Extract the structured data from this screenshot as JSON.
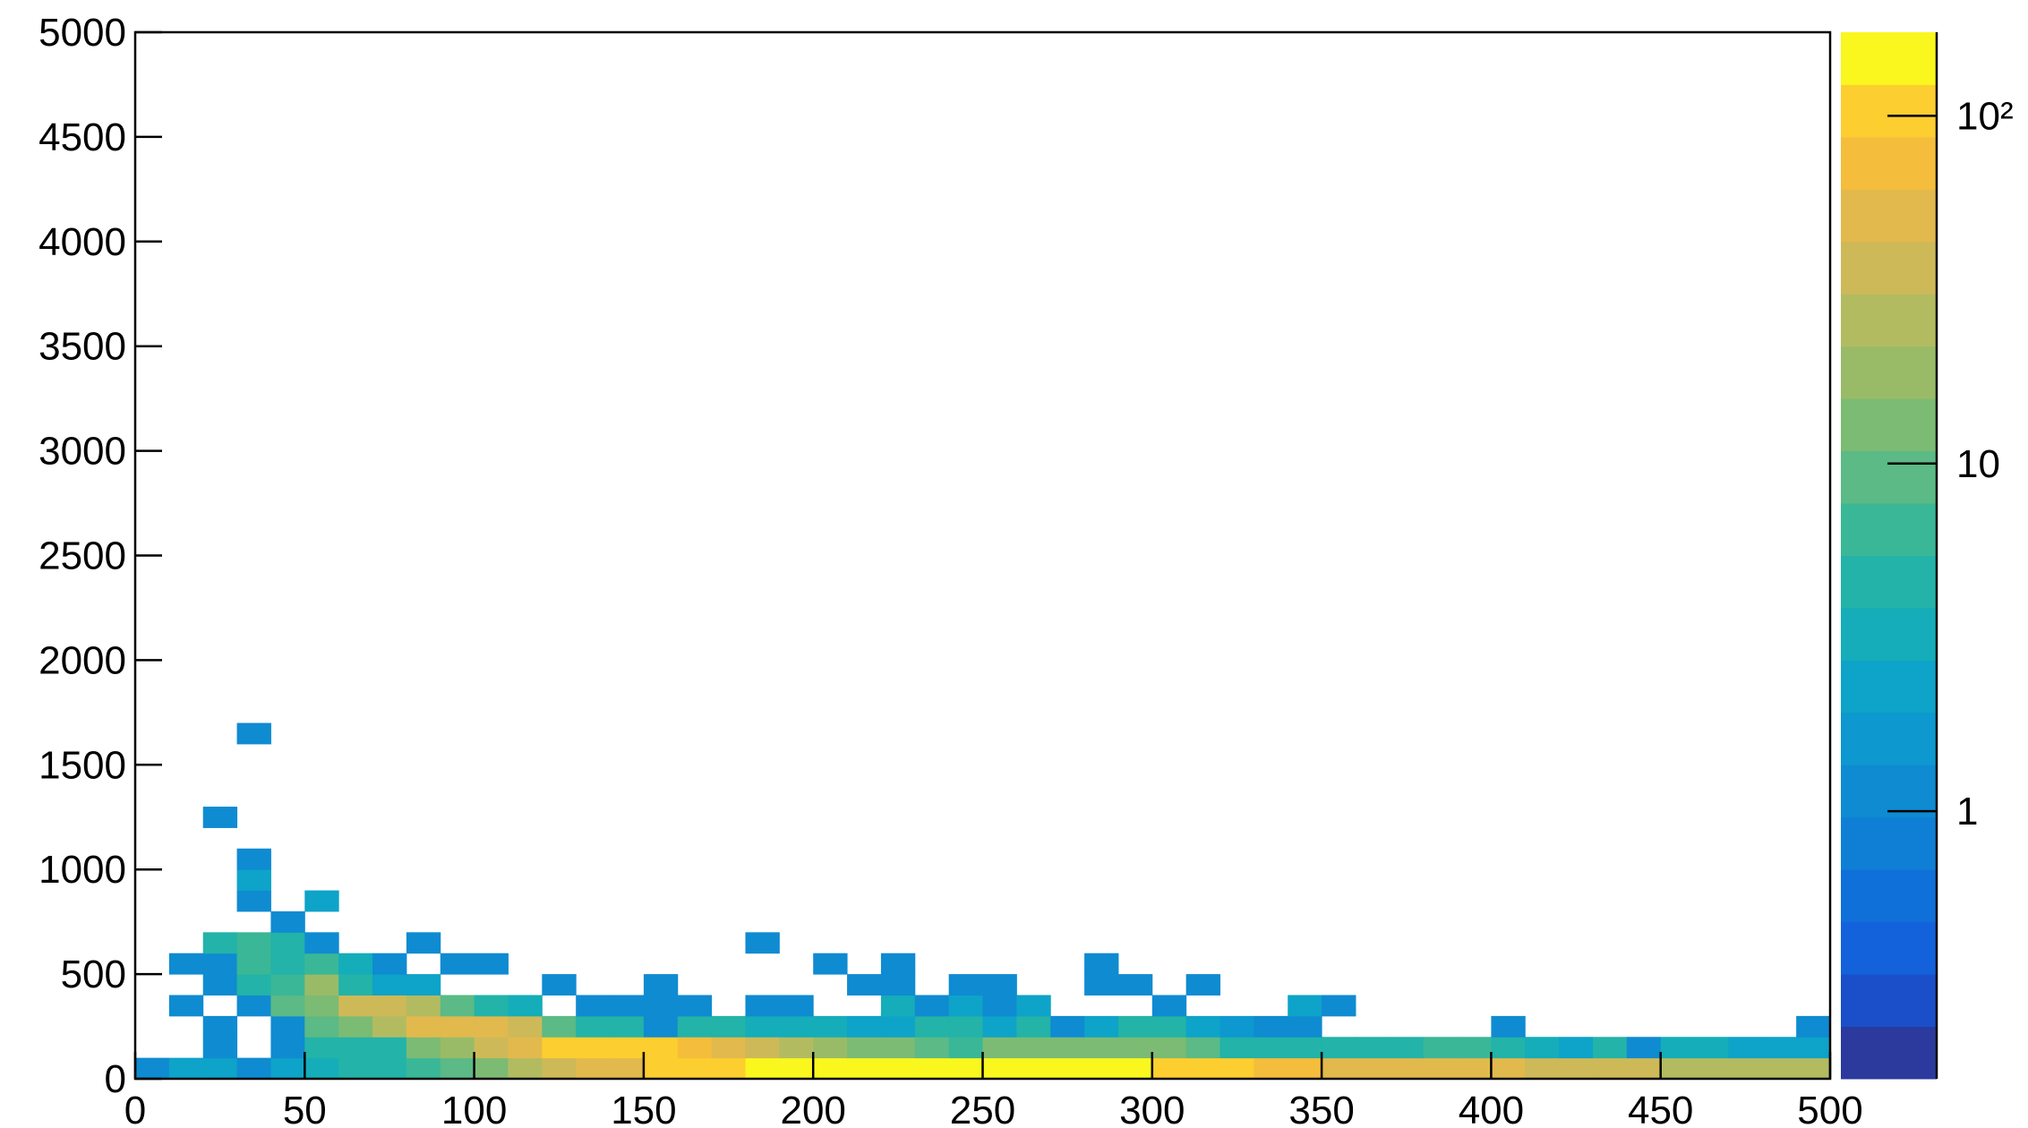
{
  "chart_data": {
    "type": "heatmap",
    "xlim": [
      0,
      500
    ],
    "ylim": [
      0,
      5000
    ],
    "xticks": [
      0,
      50,
      100,
      150,
      200,
      250,
      300,
      350,
      400,
      450,
      500
    ],
    "yticks": [
      0,
      500,
      1000,
      1500,
      2000,
      2500,
      3000,
      3500,
      4000,
      4500,
      5000
    ],
    "xbin_width": 10,
    "ybin_width": 100,
    "zlim": [
      0.17,
      174
    ],
    "zlog": true,
    "zticks": [
      1,
      10,
      {
        "value": 100,
        "label": "10²"
      }
    ],
    "colormap": [
      "#2b3a9c",
      "#1a4fc9",
      "#1362db",
      "#1070d9",
      "#0f7fd6",
      "#0f8bd1",
      "#0d98cf",
      "#0ea3c8",
      "#14adb9",
      "#23b3a8",
      "#3ab797",
      "#5bba85",
      "#7cbb73",
      "#99bb68",
      "#b3bb61",
      "#cdb958",
      "#e2b94d",
      "#f5bd3c",
      "#fcce2f",
      "#f9f71e"
    ],
    "cells": [
      [
        0,
        0,
        1
      ],
      [
        10,
        0,
        2
      ],
      [
        20,
        0,
        2
      ],
      [
        30,
        0,
        1
      ],
      [
        40,
        0,
        2
      ],
      [
        50,
        0,
        3
      ],
      [
        60,
        0,
        4
      ],
      [
        70,
        0,
        5
      ],
      [
        80,
        0,
        7
      ],
      [
        90,
        0,
        9
      ],
      [
        100,
        0,
        12
      ],
      [
        110,
        0,
        25
      ],
      [
        120,
        0,
        35
      ],
      [
        130,
        0,
        45
      ],
      [
        140,
        0,
        60
      ],
      [
        150,
        0,
        100
      ],
      [
        160,
        0,
        120
      ],
      [
        170,
        0,
        120
      ],
      [
        180,
        0,
        130
      ],
      [
        190,
        0,
        140
      ],
      [
        200,
        0,
        150
      ],
      [
        210,
        0,
        150
      ],
      [
        220,
        0,
        150
      ],
      [
        230,
        0,
        150
      ],
      [
        240,
        0,
        150
      ],
      [
        250,
        0,
        150
      ],
      [
        260,
        0,
        150
      ],
      [
        270,
        0,
        150
      ],
      [
        280,
        0,
        150
      ],
      [
        290,
        0,
        130
      ],
      [
        300,
        0,
        120
      ],
      [
        310,
        0,
        100
      ],
      [
        320,
        0,
        90
      ],
      [
        330,
        0,
        80
      ],
      [
        340,
        0,
        70
      ],
      [
        350,
        0,
        55
      ],
      [
        360,
        0,
        50
      ],
      [
        370,
        0,
        50
      ],
      [
        380,
        0,
        45
      ],
      [
        390,
        0,
        50
      ],
      [
        400,
        0,
        45
      ],
      [
        410,
        0,
        40
      ],
      [
        420,
        0,
        35
      ],
      [
        430,
        0,
        35
      ],
      [
        440,
        0,
        40
      ],
      [
        450,
        0,
        30
      ],
      [
        460,
        0,
        30
      ],
      [
        470,
        0,
        25
      ],
      [
        480,
        0,
        25
      ],
      [
        490,
        0,
        22
      ],
      [
        20,
        100,
        1
      ],
      [
        40,
        100,
        1
      ],
      [
        50,
        100,
        4
      ],
      [
        60,
        100,
        4
      ],
      [
        70,
        100,
        4
      ],
      [
        80,
        100,
        12
      ],
      [
        90,
        100,
        18
      ],
      [
        100,
        100,
        40
      ],
      [
        110,
        100,
        60
      ],
      [
        120,
        100,
        110
      ],
      [
        130,
        100,
        110
      ],
      [
        140,
        100,
        110
      ],
      [
        150,
        100,
        90
      ],
      [
        160,
        100,
        70
      ],
      [
        170,
        100,
        50
      ],
      [
        180,
        100,
        40
      ],
      [
        190,
        100,
        30
      ],
      [
        200,
        100,
        20
      ],
      [
        210,
        100,
        15
      ],
      [
        220,
        100,
        15
      ],
      [
        230,
        100,
        10
      ],
      [
        240,
        100,
        6
      ],
      [
        250,
        100,
        12
      ],
      [
        260,
        100,
        12
      ],
      [
        270,
        100,
        12
      ],
      [
        280,
        100,
        12
      ],
      [
        290,
        100,
        12
      ],
      [
        300,
        100,
        12
      ],
      [
        310,
        100,
        10
      ],
      [
        320,
        100,
        5
      ],
      [
        330,
        100,
        4
      ],
      [
        340,
        100,
        5
      ],
      [
        350,
        100,
        5
      ],
      [
        360,
        100,
        4
      ],
      [
        370,
        100,
        4
      ],
      [
        380,
        100,
        7
      ],
      [
        390,
        100,
        6
      ],
      [
        400,
        100,
        5
      ],
      [
        410,
        100,
        3
      ],
      [
        420,
        100,
        2
      ],
      [
        430,
        100,
        4
      ],
      [
        440,
        100,
        1
      ],
      [
        450,
        100,
        3
      ],
      [
        460,
        100,
        3
      ],
      [
        470,
        100,
        2
      ],
      [
        480,
        100,
        2
      ],
      [
        490,
        100,
        2
      ],
      [
        20,
        200,
        1
      ],
      [
        40,
        200,
        1
      ],
      [
        50,
        200,
        9
      ],
      [
        60,
        200,
        15
      ],
      [
        70,
        200,
        25
      ],
      [
        80,
        200,
        60
      ],
      [
        90,
        200,
        60
      ],
      [
        100,
        200,
        50
      ],
      [
        110,
        200,
        40
      ],
      [
        120,
        200,
        10
      ],
      [
        130,
        200,
        5
      ],
      [
        140,
        200,
        4
      ],
      [
        150,
        200,
        1
      ],
      [
        160,
        200,
        5
      ],
      [
        170,
        200,
        4
      ],
      [
        180,
        200,
        3
      ],
      [
        190,
        200,
        3
      ],
      [
        200,
        200,
        3
      ],
      [
        210,
        200,
        2
      ],
      [
        220,
        200,
        2
      ],
      [
        230,
        200,
        4
      ],
      [
        240,
        200,
        5
      ],
      [
        250,
        200,
        2
      ],
      [
        260,
        200,
        5
      ],
      [
        270,
        200,
        1
      ],
      [
        280,
        200,
        2
      ],
      [
        290,
        200,
        4
      ],
      [
        300,
        200,
        4
      ],
      [
        310,
        200,
        2
      ],
      [
        320,
        200,
        1.5
      ],
      [
        330,
        200,
        1
      ],
      [
        340,
        200,
        1
      ],
      [
        400,
        200,
        1
      ],
      [
        490,
        200,
        1
      ],
      [
        10,
        300,
        1
      ],
      [
        30,
        300,
        1
      ],
      [
        40,
        300,
        8
      ],
      [
        50,
        300,
        15
      ],
      [
        60,
        300,
        35
      ],
      [
        70,
        300,
        35
      ],
      [
        80,
        300,
        25
      ],
      [
        90,
        300,
        8
      ],
      [
        100,
        300,
        5
      ],
      [
        110,
        300,
        3
      ],
      [
        130,
        300,
        1
      ],
      [
        140,
        300,
        1
      ],
      [
        150,
        300,
        1
      ],
      [
        160,
        300,
        1
      ],
      [
        180,
        300,
        1
      ],
      [
        190,
        300,
        1
      ],
      [
        220,
        300,
        3
      ],
      [
        230,
        300,
        1
      ],
      [
        240,
        300,
        2
      ],
      [
        250,
        300,
        1
      ],
      [
        260,
        300,
        2
      ],
      [
        300,
        300,
        1
      ],
      [
        340,
        300,
        2
      ],
      [
        350,
        300,
        1
      ],
      [
        20,
        400,
        1
      ],
      [
        30,
        400,
        5
      ],
      [
        40,
        400,
        6
      ],
      [
        50,
        400,
        20
      ],
      [
        60,
        400,
        4
      ],
      [
        70,
        400,
        2
      ],
      [
        80,
        400,
        2
      ],
      [
        120,
        400,
        1
      ],
      [
        150,
        400,
        1
      ],
      [
        210,
        400,
        1
      ],
      [
        220,
        400,
        1
      ],
      [
        240,
        400,
        1
      ],
      [
        250,
        400,
        1
      ],
      [
        280,
        400,
        1
      ],
      [
        290,
        400,
        1
      ],
      [
        310,
        400,
        1
      ],
      [
        10,
        500,
        1
      ],
      [
        20,
        500,
        1
      ],
      [
        30,
        500,
        7
      ],
      [
        40,
        500,
        4
      ],
      [
        50,
        500,
        6
      ],
      [
        60,
        500,
        3
      ],
      [
        70,
        500,
        1
      ],
      [
        90,
        500,
        1
      ],
      [
        100,
        500,
        1
      ],
      [
        200,
        500,
        1
      ],
      [
        220,
        500,
        1
      ],
      [
        280,
        500,
        1
      ],
      [
        20,
        600,
        4
      ],
      [
        30,
        600,
        7
      ],
      [
        40,
        600,
        4
      ],
      [
        50,
        600,
        1
      ],
      [
        80,
        600,
        1
      ],
      [
        180,
        600,
        1
      ],
      [
        40,
        700,
        1
      ],
      [
        30,
        800,
        1
      ],
      [
        50,
        800,
        2
      ],
      [
        30,
        900,
        2
      ],
      [
        30,
        1000,
        1
      ],
      [
        20,
        1200,
        1
      ],
      [
        30,
        1600,
        1
      ]
    ]
  }
}
